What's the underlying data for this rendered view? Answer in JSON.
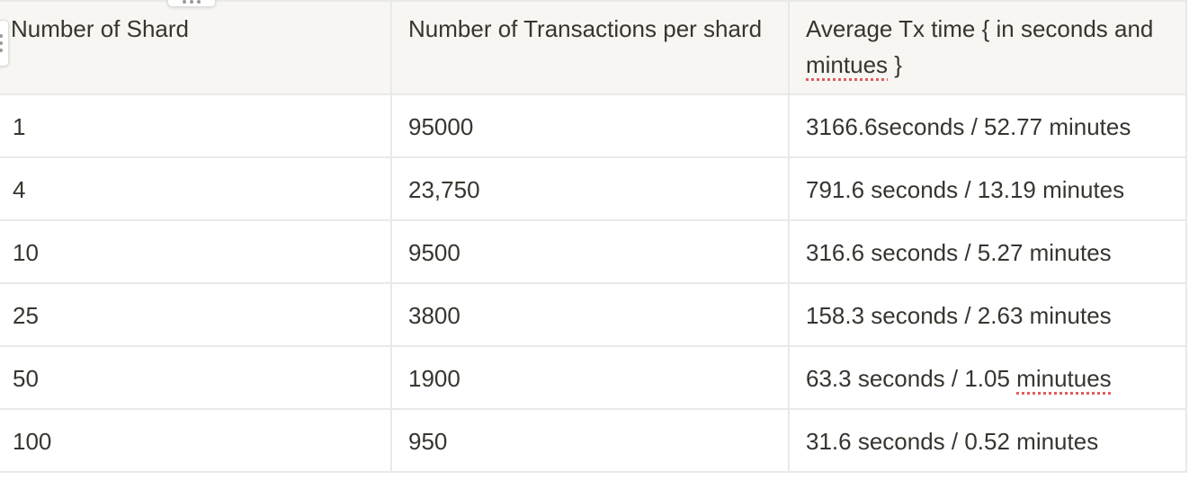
{
  "table": {
    "headers": [
      "Number of Shard",
      "Number of Transactions per shard",
      "Average Tx time { in seconds and mintues }"
    ],
    "header_3_parts": {
      "before": "Average Tx time { in seconds and ",
      "misspelled": "mintues",
      "after": " }"
    },
    "rows": [
      [
        "1",
        "95000",
        "3166.6seconds / 52.77 minutes"
      ],
      [
        "4",
        "23,750",
        "791.6 seconds / 13.19 minutes"
      ],
      [
        "10",
        "9500",
        "316.6 seconds / 5.27 minutes"
      ],
      [
        "25",
        "3800",
        "158.3 seconds / 2.63 minutes"
      ],
      [
        "50",
        "1900",
        "63.3 seconds  / 1.05 minutues"
      ],
      [
        "100",
        "950",
        "31.6 seconds / 0.52 minutes"
      ]
    ],
    "row_5_col_3_parts": {
      "before": "63.3 seconds  / 1.05 ",
      "misspelled": "minutues"
    }
  },
  "colors": {
    "header_bg": "#f7f6f3",
    "border": "#e9e9e7",
    "text": "#37352f",
    "spellcheck_underline": "#e15b5b"
  },
  "icons": [
    "row-drag-handle-icon",
    "column-drag-handle-icon"
  ]
}
